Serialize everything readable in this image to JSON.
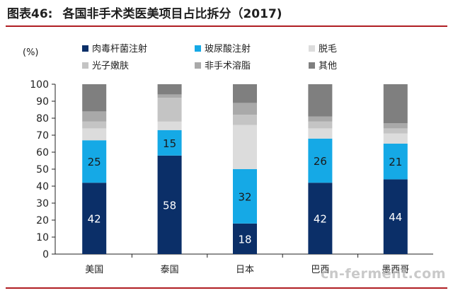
{
  "header": {
    "figure_label": "图表46:",
    "title": "各国非手术类医美项目占比拆分（2017)"
  },
  "watermark": "cn-ferment.com",
  "chart_data": {
    "type": "bar",
    "stacked": true,
    "title": "各国非手术类医美项目占比拆分（2017)",
    "ylabel": "(%)",
    "xlabel": "",
    "ylim": [
      0,
      100
    ],
    "yticks": [
      0,
      10,
      20,
      30,
      40,
      50,
      60,
      70,
      80,
      90,
      100
    ],
    "categories": [
      "美国",
      "泰国",
      "日本",
      "巴西",
      "墨西哥"
    ],
    "series": [
      {
        "name": "肉毒杆菌注射",
        "color": "#0b2f68",
        "values": [
          42,
          58,
          18,
          42,
          44
        ],
        "labels": [
          "42",
          "58",
          "18",
          "42",
          "44"
        ]
      },
      {
        "name": "玻尿酸注射",
        "color": "#15a9e6",
        "values": [
          25,
          15,
          32,
          26,
          21
        ],
        "labels": [
          "25",
          "15",
          "32",
          "26",
          "21"
        ]
      },
      {
        "name": "脱毛",
        "color": "#dcdcdc",
        "values": [
          7,
          5,
          26,
          6,
          6
        ]
      },
      {
        "name": "光子嫩肤",
        "color": "#c4c4c4",
        "values": [
          4,
          14,
          6,
          4,
          3
        ]
      },
      {
        "name": "非手术溶脂",
        "color": "#a9a9a9",
        "values": [
          6,
          2,
          7,
          3,
          3
        ]
      },
      {
        "name": "其他",
        "color": "#7f7f7f",
        "values": [
          16,
          6,
          11,
          19,
          23
        ]
      }
    ],
    "legend_position": "top",
    "grid": false
  }
}
